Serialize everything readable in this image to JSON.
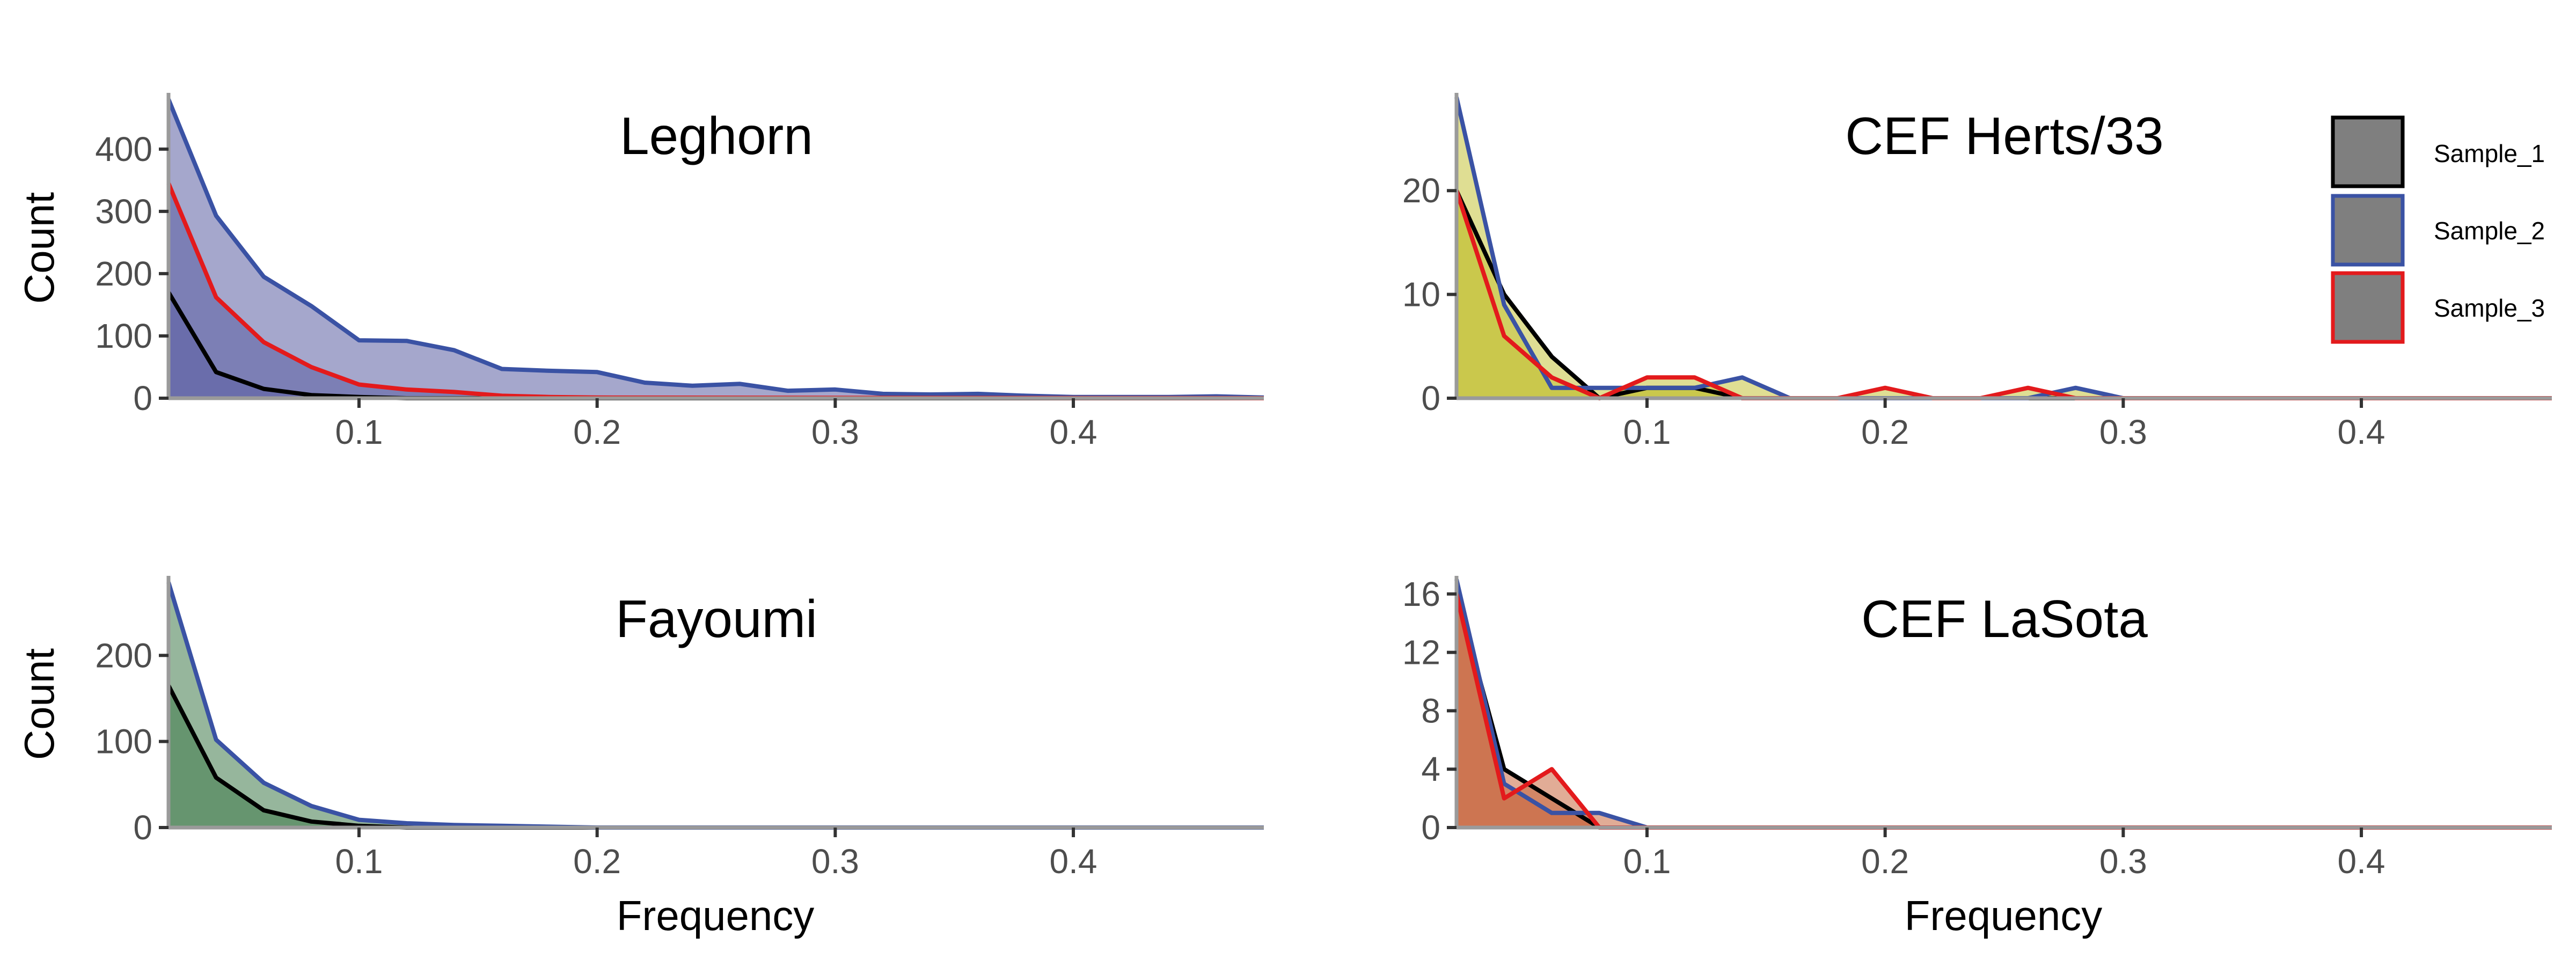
{
  "figure": {
    "xlabel": "Frequency",
    "ylabel": "Count",
    "fill_alpha": 0.55
  },
  "legend": {
    "placement": "top-right",
    "fill_color": "#7f7f7f",
    "entries": [
      {
        "name": "Sample_1",
        "color": "#000000"
      },
      {
        "name": "Sample_2",
        "color": "#3a52a4"
      },
      {
        "name": "Sample_3",
        "color": "#e31a1c"
      }
    ]
  },
  "chart_data": [
    {
      "type": "area",
      "title": "Leghorn",
      "xlabel": "",
      "ylabel": "Count",
      "fill_color": "#5b5fa3",
      "xlim": [
        0.02,
        0.48
      ],
      "ylim": [
        0,
        480
      ],
      "x_ticks": [
        0.1,
        0.2,
        0.3,
        0.4
      ],
      "x_tick_labels": [
        "0.1",
        "0.2",
        "0.3",
        "0.4"
      ],
      "y_ticks": [
        0,
        100,
        200,
        300,
        400
      ],
      "y_tick_labels": [
        "0",
        "100",
        "200",
        "300",
        "400"
      ],
      "series": [
        {
          "name": "Sample_1",
          "x": [
            0.02,
            0.04,
            0.06,
            0.08,
            0.1,
            0.12,
            0.14,
            0.48
          ],
          "y": [
            170,
            42,
            15,
            5,
            2,
            0,
            0,
            0
          ]
        },
        {
          "name": "Sample_2",
          "x": [
            0.02,
            0.04,
            0.06,
            0.08,
            0.1,
            0.12,
            0.14,
            0.16,
            0.18,
            0.2,
            0.22,
            0.24,
            0.26,
            0.28,
            0.3,
            0.32,
            0.34,
            0.36,
            0.38,
            0.4,
            0.42,
            0.44,
            0.46,
            0.48
          ],
          "y": [
            480,
            293,
            195,
            148,
            93,
            92,
            77,
            47,
            44,
            42,
            25,
            20,
            23,
            12,
            14,
            7,
            6,
            7,
            4,
            2,
            2,
            2,
            3,
            1
          ]
        },
        {
          "name": "Sample_3",
          "x": [
            0.02,
            0.04,
            0.06,
            0.08,
            0.1,
            0.12,
            0.14,
            0.16,
            0.18,
            0.2,
            0.48
          ],
          "y": [
            345,
            162,
            90,
            50,
            22,
            14,
            10,
            4,
            2,
            1,
            0
          ]
        }
      ]
    },
    {
      "type": "area",
      "title": "CEF Herts/33",
      "xlabel": "",
      "ylabel": "",
      "fill_color": "#c5c23a",
      "xlim": [
        0.02,
        0.48
      ],
      "ylim": [
        0,
        28.8
      ],
      "x_ticks": [
        0.1,
        0.2,
        0.3,
        0.4
      ],
      "x_tick_labels": [
        "0.1",
        "0.2",
        "0.3",
        "0.4"
      ],
      "y_ticks": [
        0,
        10,
        20
      ],
      "y_tick_labels": [
        "0",
        "10",
        "20"
      ],
      "series": [
        {
          "name": "Sample_1",
          "x": [
            0.02,
            0.04,
            0.06,
            0.08,
            0.1,
            0.12,
            0.14,
            0.16,
            0.48
          ],
          "y": [
            20,
            10,
            4,
            0,
            1,
            1,
            0,
            0,
            0
          ]
        },
        {
          "name": "Sample_2",
          "x": [
            0.02,
            0.04,
            0.06,
            0.08,
            0.1,
            0.12,
            0.14,
            0.16,
            0.18,
            0.2,
            0.22,
            0.24,
            0.26,
            0.28,
            0.3,
            0.48
          ],
          "y": [
            29,
            9,
            1,
            1,
            1,
            1,
            2,
            0,
            0,
            0,
            0,
            0,
            0,
            1,
            0,
            0
          ]
        },
        {
          "name": "Sample_3",
          "x": [
            0.02,
            0.04,
            0.06,
            0.08,
            0.1,
            0.12,
            0.14,
            0.16,
            0.18,
            0.2,
            0.22,
            0.24,
            0.26,
            0.28,
            0.48
          ],
          "y": [
            20,
            6,
            2,
            0,
            2,
            2,
            0,
            0,
            0,
            1,
            0,
            0,
            1,
            0,
            0
          ]
        }
      ]
    },
    {
      "type": "area",
      "title": "Fayoumi",
      "xlabel": "Frequency",
      "ylabel": "Count",
      "fill_color": "#3f7a4a",
      "xlim": [
        0.02,
        0.48
      ],
      "ylim": [
        0,
        285
      ],
      "x_ticks": [
        0.1,
        0.2,
        0.3,
        0.4
      ],
      "x_tick_labels": [
        "0.1",
        "0.2",
        "0.3",
        "0.4"
      ],
      "y_ticks": [
        0,
        100,
        200
      ],
      "y_tick_labels": [
        "0",
        "100",
        "200"
      ],
      "series": [
        {
          "name": "Sample_1",
          "x": [
            0.02,
            0.04,
            0.06,
            0.08,
            0.1,
            0.12,
            0.48
          ],
          "y": [
            165,
            58,
            20,
            7,
            2,
            0,
            0
          ]
        },
        {
          "name": "Sample_2",
          "x": [
            0.02,
            0.04,
            0.06,
            0.08,
            0.1,
            0.12,
            0.14,
            0.16,
            0.18,
            0.2,
            0.48
          ],
          "y": [
            285,
            102,
            52,
            25,
            9,
            5,
            3,
            2,
            1,
            0,
            0
          ]
        }
      ]
    },
    {
      "type": "area",
      "title": "CEF LaSota",
      "xlabel": "Frequency",
      "ylabel": "",
      "fill_color": "#c8673f",
      "xlim": [
        0.02,
        0.48
      ],
      "ylim": [
        0,
        16.8
      ],
      "x_ticks": [
        0.1,
        0.2,
        0.3,
        0.4
      ],
      "x_tick_labels": [
        "0.1",
        "0.2",
        "0.3",
        "0.4"
      ],
      "y_ticks": [
        0,
        4,
        8,
        12,
        16
      ],
      "y_tick_labels": [
        "0",
        "4",
        "8",
        "12",
        "16"
      ],
      "series": [
        {
          "name": "Sample_1",
          "x": [
            0.02,
            0.04,
            0.06,
            0.08,
            0.48
          ],
          "y": [
            16,
            4,
            2,
            0,
            0
          ]
        },
        {
          "name": "Sample_2",
          "x": [
            0.02,
            0.04,
            0.06,
            0.08,
            0.1,
            0.48
          ],
          "y": [
            17,
            3,
            1,
            1,
            0,
            0
          ]
        },
        {
          "name": "Sample_3",
          "x": [
            0.02,
            0.04,
            0.06,
            0.08,
            0.48
          ],
          "y": [
            16,
            2,
            4,
            0,
            0
          ]
        }
      ]
    }
  ]
}
